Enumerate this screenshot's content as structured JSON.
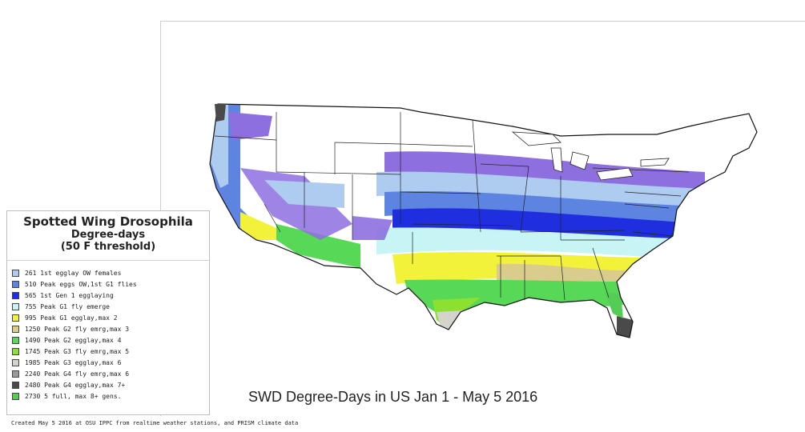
{
  "legend": {
    "title": "Spotted Wing Drosophila",
    "subtitle": "Degree-days",
    "threshold": "(50 F threshold)",
    "items": [
      {
        "label": "261 1st egglay OW females",
        "color": "#aecbf0"
      },
      {
        "label": "510 Peak eggs OW,1st G1 flies",
        "color": "#5d84e0"
      },
      {
        "label": "565 1st Gen 1 egglaying",
        "color": "#1f2fe0"
      },
      {
        "label": "755 Peak G1 fly emerge",
        "color": "#c7f5f5"
      },
      {
        "label": "995 Peak G1 egglay,max 2",
        "color": "#f2f23a"
      },
      {
        "label": "1250 Peak G2 fly emrg,max 3",
        "color": "#d9cc8c"
      },
      {
        "label": "1490 Peak G2 egglay,max 4",
        "color": "#57d957"
      },
      {
        "label": "1745 Peak G3 fly emrg,max 5",
        "color": "#8ce030"
      },
      {
        "label": "1985 Peak G3 egglay,max 6",
        "color": "#d4d4cc"
      },
      {
        "label": "2240 Peak G4 fly emrg,max 6",
        "color": "#9a9a9a"
      },
      {
        "label": "2480 Peak G4 egglay,max 7+",
        "color": "#4a4a4a"
      },
      {
        "label": "2730 5 full, max 8+ gens.",
        "color": "#55cc55"
      }
    ]
  },
  "map_title": "SWD Degree-Days in US  Jan 1 - May 5 2016",
  "footer": "Created May 5 2016 at OSU IPPC from  realtime weather stations, and PRISM climate data"
}
